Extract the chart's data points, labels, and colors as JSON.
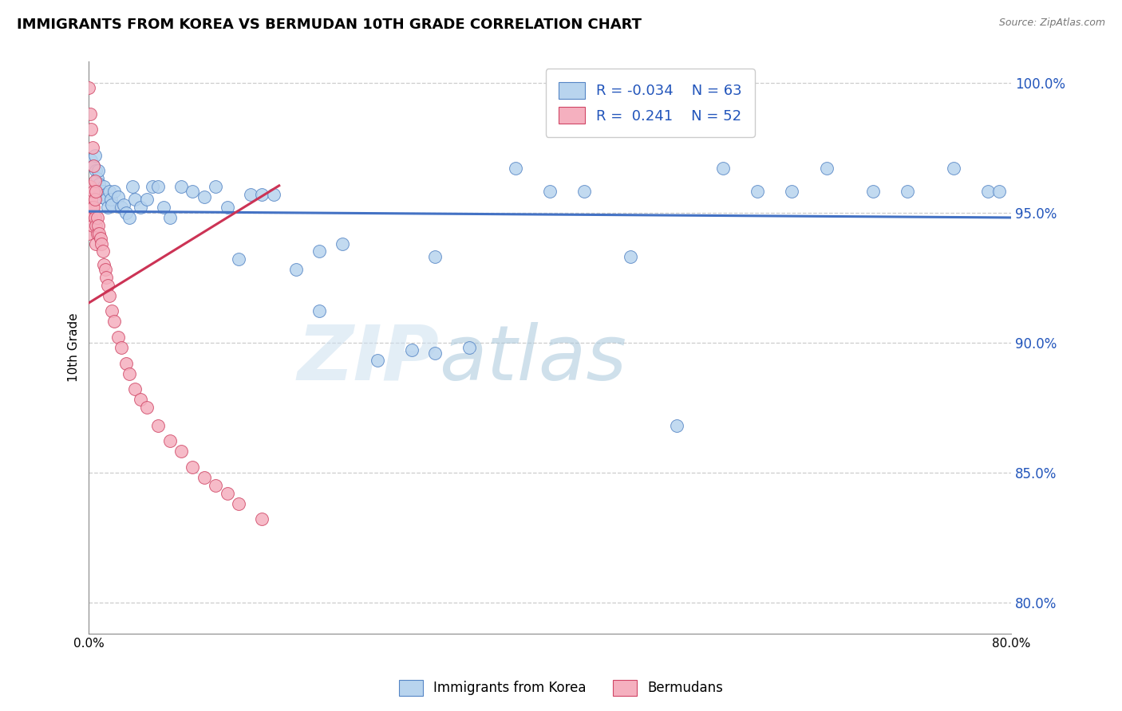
{
  "title": "IMMIGRANTS FROM KOREA VS BERMUDAN 10TH GRADE CORRELATION CHART",
  "source_text": "Source: ZipAtlas.com",
  "ylabel": "10th Grade",
  "legend_korea_r": "-0.034",
  "legend_korea_n": "63",
  "legend_bermuda_r": "0.241",
  "legend_bermuda_n": "52",
  "x_min": 0.0,
  "x_max": 0.8,
  "y_min": 0.788,
  "y_max": 1.008,
  "y_ticks": [
    0.8,
    0.85,
    0.9,
    0.95,
    1.0
  ],
  "y_tick_labels": [
    "80.0%",
    "85.0%",
    "90.0%",
    "95.0%",
    "100.0%"
  ],
  "korea_color": "#b8d4ee",
  "korea_edge_color": "#5585c5",
  "bermuda_color": "#f5b0bf",
  "bermuda_edge_color": "#d04565",
  "korea_line_color": "#4472c4",
  "bermuda_line_color": "#cc3355",
  "grid_color": "#cccccc",
  "korea_points_x": [
    0.002,
    0.004,
    0.005,
    0.006,
    0.007,
    0.008,
    0.009,
    0.01,
    0.011,
    0.012,
    0.013,
    0.014,
    0.015,
    0.016,
    0.018,
    0.019,
    0.02,
    0.022,
    0.025,
    0.028,
    0.03,
    0.032,
    0.035,
    0.038,
    0.04,
    0.045,
    0.05,
    0.055,
    0.06,
    0.065,
    0.07,
    0.08,
    0.09,
    0.1,
    0.11,
    0.12,
    0.13,
    0.14,
    0.15,
    0.16,
    0.18,
    0.2,
    0.22,
    0.25,
    0.28,
    0.3,
    0.33,
    0.37,
    0.4,
    0.43,
    0.47,
    0.51,
    0.55,
    0.58,
    0.61,
    0.64,
    0.68,
    0.71,
    0.75,
    0.78,
    0.79,
    0.2,
    0.3
  ],
  "korea_points_y": [
    0.97,
    0.968,
    0.972,
    0.966,
    0.963,
    0.966,
    0.961,
    0.958,
    0.956,
    0.958,
    0.96,
    0.957,
    0.955,
    0.952,
    0.958,
    0.955,
    0.953,
    0.958,
    0.956,
    0.952,
    0.953,
    0.95,
    0.948,
    0.96,
    0.955,
    0.952,
    0.955,
    0.96,
    0.96,
    0.952,
    0.948,
    0.96,
    0.958,
    0.956,
    0.96,
    0.952,
    0.932,
    0.957,
    0.957,
    0.957,
    0.928,
    0.912,
    0.938,
    0.893,
    0.897,
    0.933,
    0.898,
    0.967,
    0.958,
    0.958,
    0.933,
    0.868,
    0.967,
    0.958,
    0.958,
    0.967,
    0.958,
    0.958,
    0.967,
    0.958,
    0.958,
    0.935,
    0.896
  ],
  "bermuda_points_x": [
    0.0,
    0.0,
    0.0,
    0.001,
    0.001,
    0.002,
    0.002,
    0.003,
    0.003,
    0.004,
    0.004,
    0.005,
    0.005,
    0.006,
    0.006,
    0.007,
    0.007,
    0.008,
    0.009,
    0.01,
    0.011,
    0.012,
    0.013,
    0.014,
    0.015,
    0.016,
    0.018,
    0.02,
    0.022,
    0.025,
    0.028,
    0.032,
    0.035,
    0.04,
    0.045,
    0.05,
    0.06,
    0.07,
    0.08,
    0.09,
    0.1,
    0.11,
    0.12,
    0.13,
    0.15,
    0.0,
    0.001,
    0.002,
    0.003,
    0.004,
    0.005,
    0.006
  ],
  "bermuda_points_y": [
    0.955,
    0.948,
    0.942,
    0.96,
    0.952,
    0.955,
    0.948,
    0.952,
    0.945,
    0.958,
    0.952,
    0.955,
    0.948,
    0.945,
    0.938,
    0.948,
    0.942,
    0.945,
    0.942,
    0.94,
    0.938,
    0.935,
    0.93,
    0.928,
    0.925,
    0.922,
    0.918,
    0.912,
    0.908,
    0.902,
    0.898,
    0.892,
    0.888,
    0.882,
    0.878,
    0.875,
    0.868,
    0.862,
    0.858,
    0.852,
    0.848,
    0.845,
    0.842,
    0.838,
    0.832,
    0.998,
    0.988,
    0.982,
    0.975,
    0.968,
    0.962,
    0.958
  ]
}
